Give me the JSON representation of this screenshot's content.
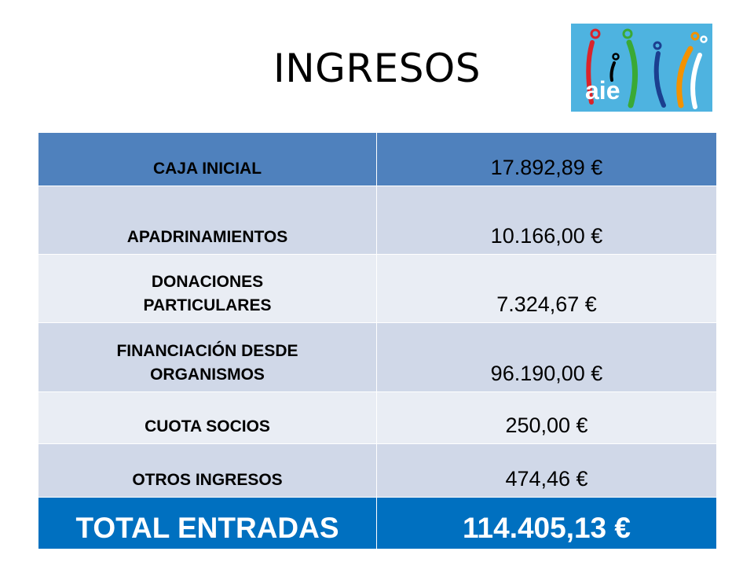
{
  "slide": {
    "title": "INGRESOS",
    "logo_text": "aie"
  },
  "table": {
    "rows": [
      {
        "label": "CAJA INICIAL",
        "value": "17.892,89 €"
      },
      {
        "label": "APADRINAMIENTOS",
        "value": "10.166,00 €"
      },
      {
        "label_lines": [
          "DONACIONES",
          "PARTICULARES"
        ],
        "value": "7.324,67 €"
      },
      {
        "label_lines": [
          "FINANCIACIÓN DESDE",
          "ORGANISMOS"
        ],
        "value": "96.190,00 €"
      },
      {
        "label": "CUOTA SOCIOS",
        "value": "250,00 €"
      },
      {
        "label": "OTROS INGRESOS",
        "value": "474,46 €"
      }
    ],
    "total": {
      "label": "TOTAL ENTRADAS",
      "value": "114.405,13 €"
    }
  },
  "colors": {
    "header_row": "#4f81bd",
    "band_dark": "#d0d8e8",
    "band_light": "#e9edf4",
    "total_row": "#0070c0",
    "logo_bg": "#4eb3e0"
  }
}
